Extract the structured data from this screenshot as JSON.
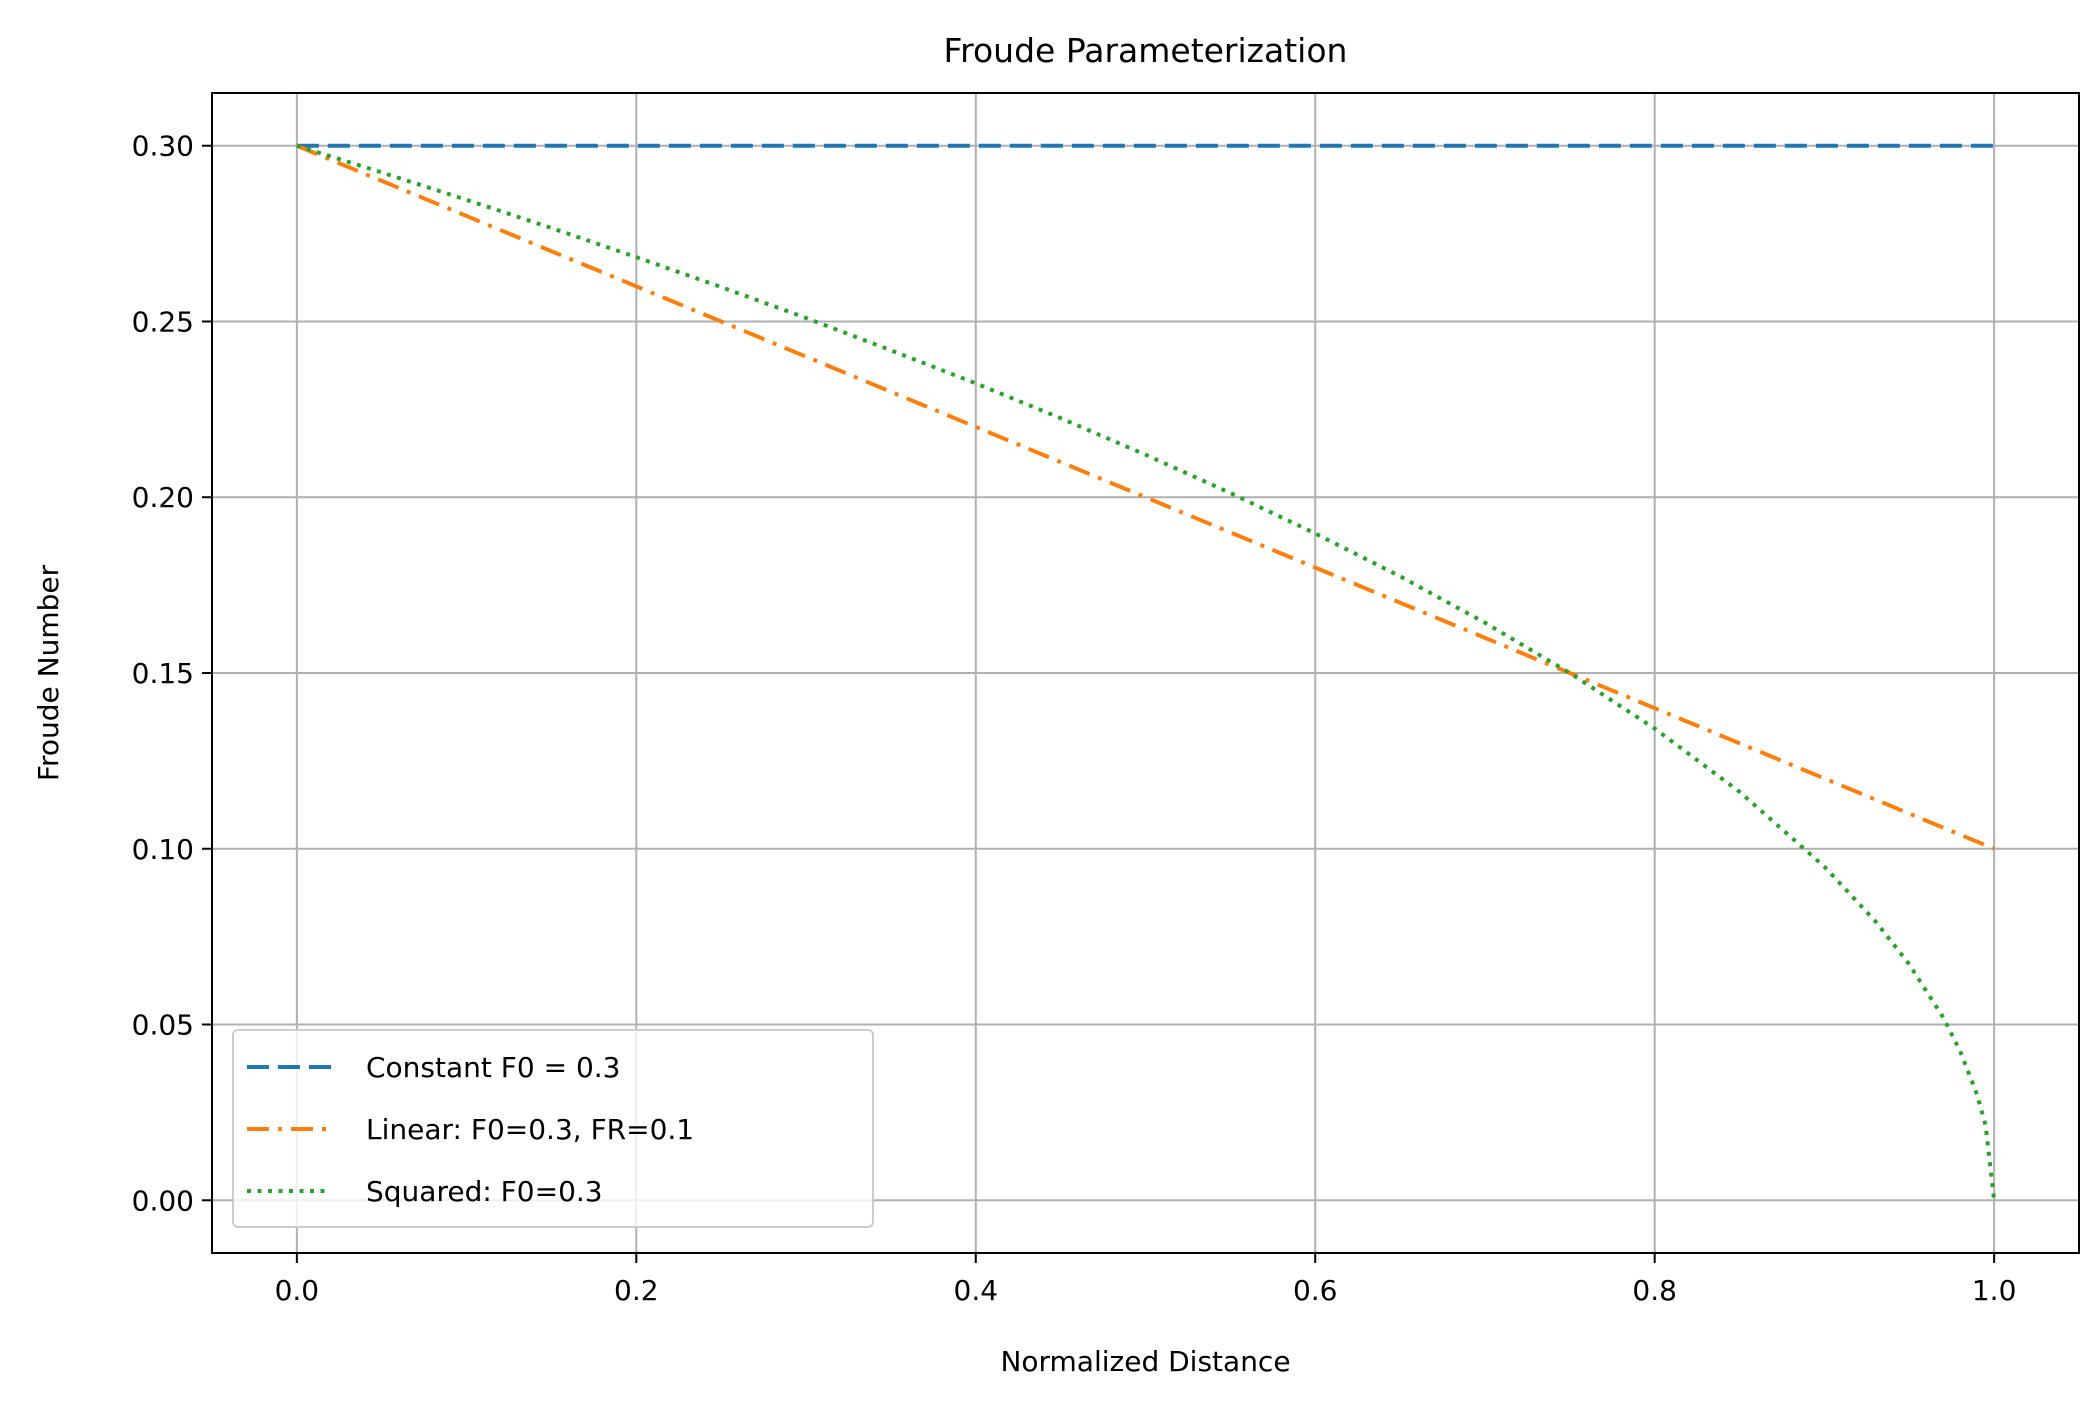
{
  "chart_data": {
    "type": "line",
    "title": "Froude Parameterization",
    "xlabel": "Normalized Distance",
    "ylabel": "Froude Number",
    "xlim": [
      -0.05,
      1.05
    ],
    "ylim": [
      -0.015,
      0.315
    ],
    "xticks": [
      "0.0",
      "0.2",
      "0.4",
      "0.6",
      "0.8",
      "1.0"
    ],
    "yticks": [
      "0.00",
      "0.05",
      "0.10",
      "0.15",
      "0.20",
      "0.25",
      "0.30"
    ],
    "grid": true,
    "legend_position": "lower-left",
    "series": [
      {
        "name": "Constant F0 = 0.3",
        "color": "#1f77b4",
        "style": "dashed",
        "x": [
          0.0,
          1.0
        ],
        "y": [
          0.3,
          0.3
        ]
      },
      {
        "name": "Linear: F0=0.3, FR=0.1",
        "color": "#ff7f0e",
        "style": "dashdot",
        "x": [
          0.0,
          1.0
        ],
        "y": [
          0.3,
          0.1
        ]
      },
      {
        "name": "Squared: F0=0.3",
        "color": "#2ca02c",
        "style": "dotted",
        "x": [
          0.0,
          0.05,
          0.1,
          0.15,
          0.2,
          0.25,
          0.3,
          0.35,
          0.4,
          0.45,
          0.5,
          0.55,
          0.6,
          0.65,
          0.7,
          0.75,
          0.8,
          0.85,
          0.9,
          0.93,
          0.95,
          0.97,
          0.98,
          0.99,
          0.995,
          1.0
        ],
        "y": [
          0.3,
          0.2924,
          0.2846,
          0.2766,
          0.2683,
          0.2598,
          0.251,
          0.2418,
          0.2324,
          0.2225,
          0.2121,
          0.2012,
          0.1897,
          0.1775,
          0.1643,
          0.15,
          0.1342,
          0.1162,
          0.0949,
          0.0794,
          0.0671,
          0.052,
          0.0424,
          0.03,
          0.0212,
          0.0
        ]
      }
    ]
  }
}
